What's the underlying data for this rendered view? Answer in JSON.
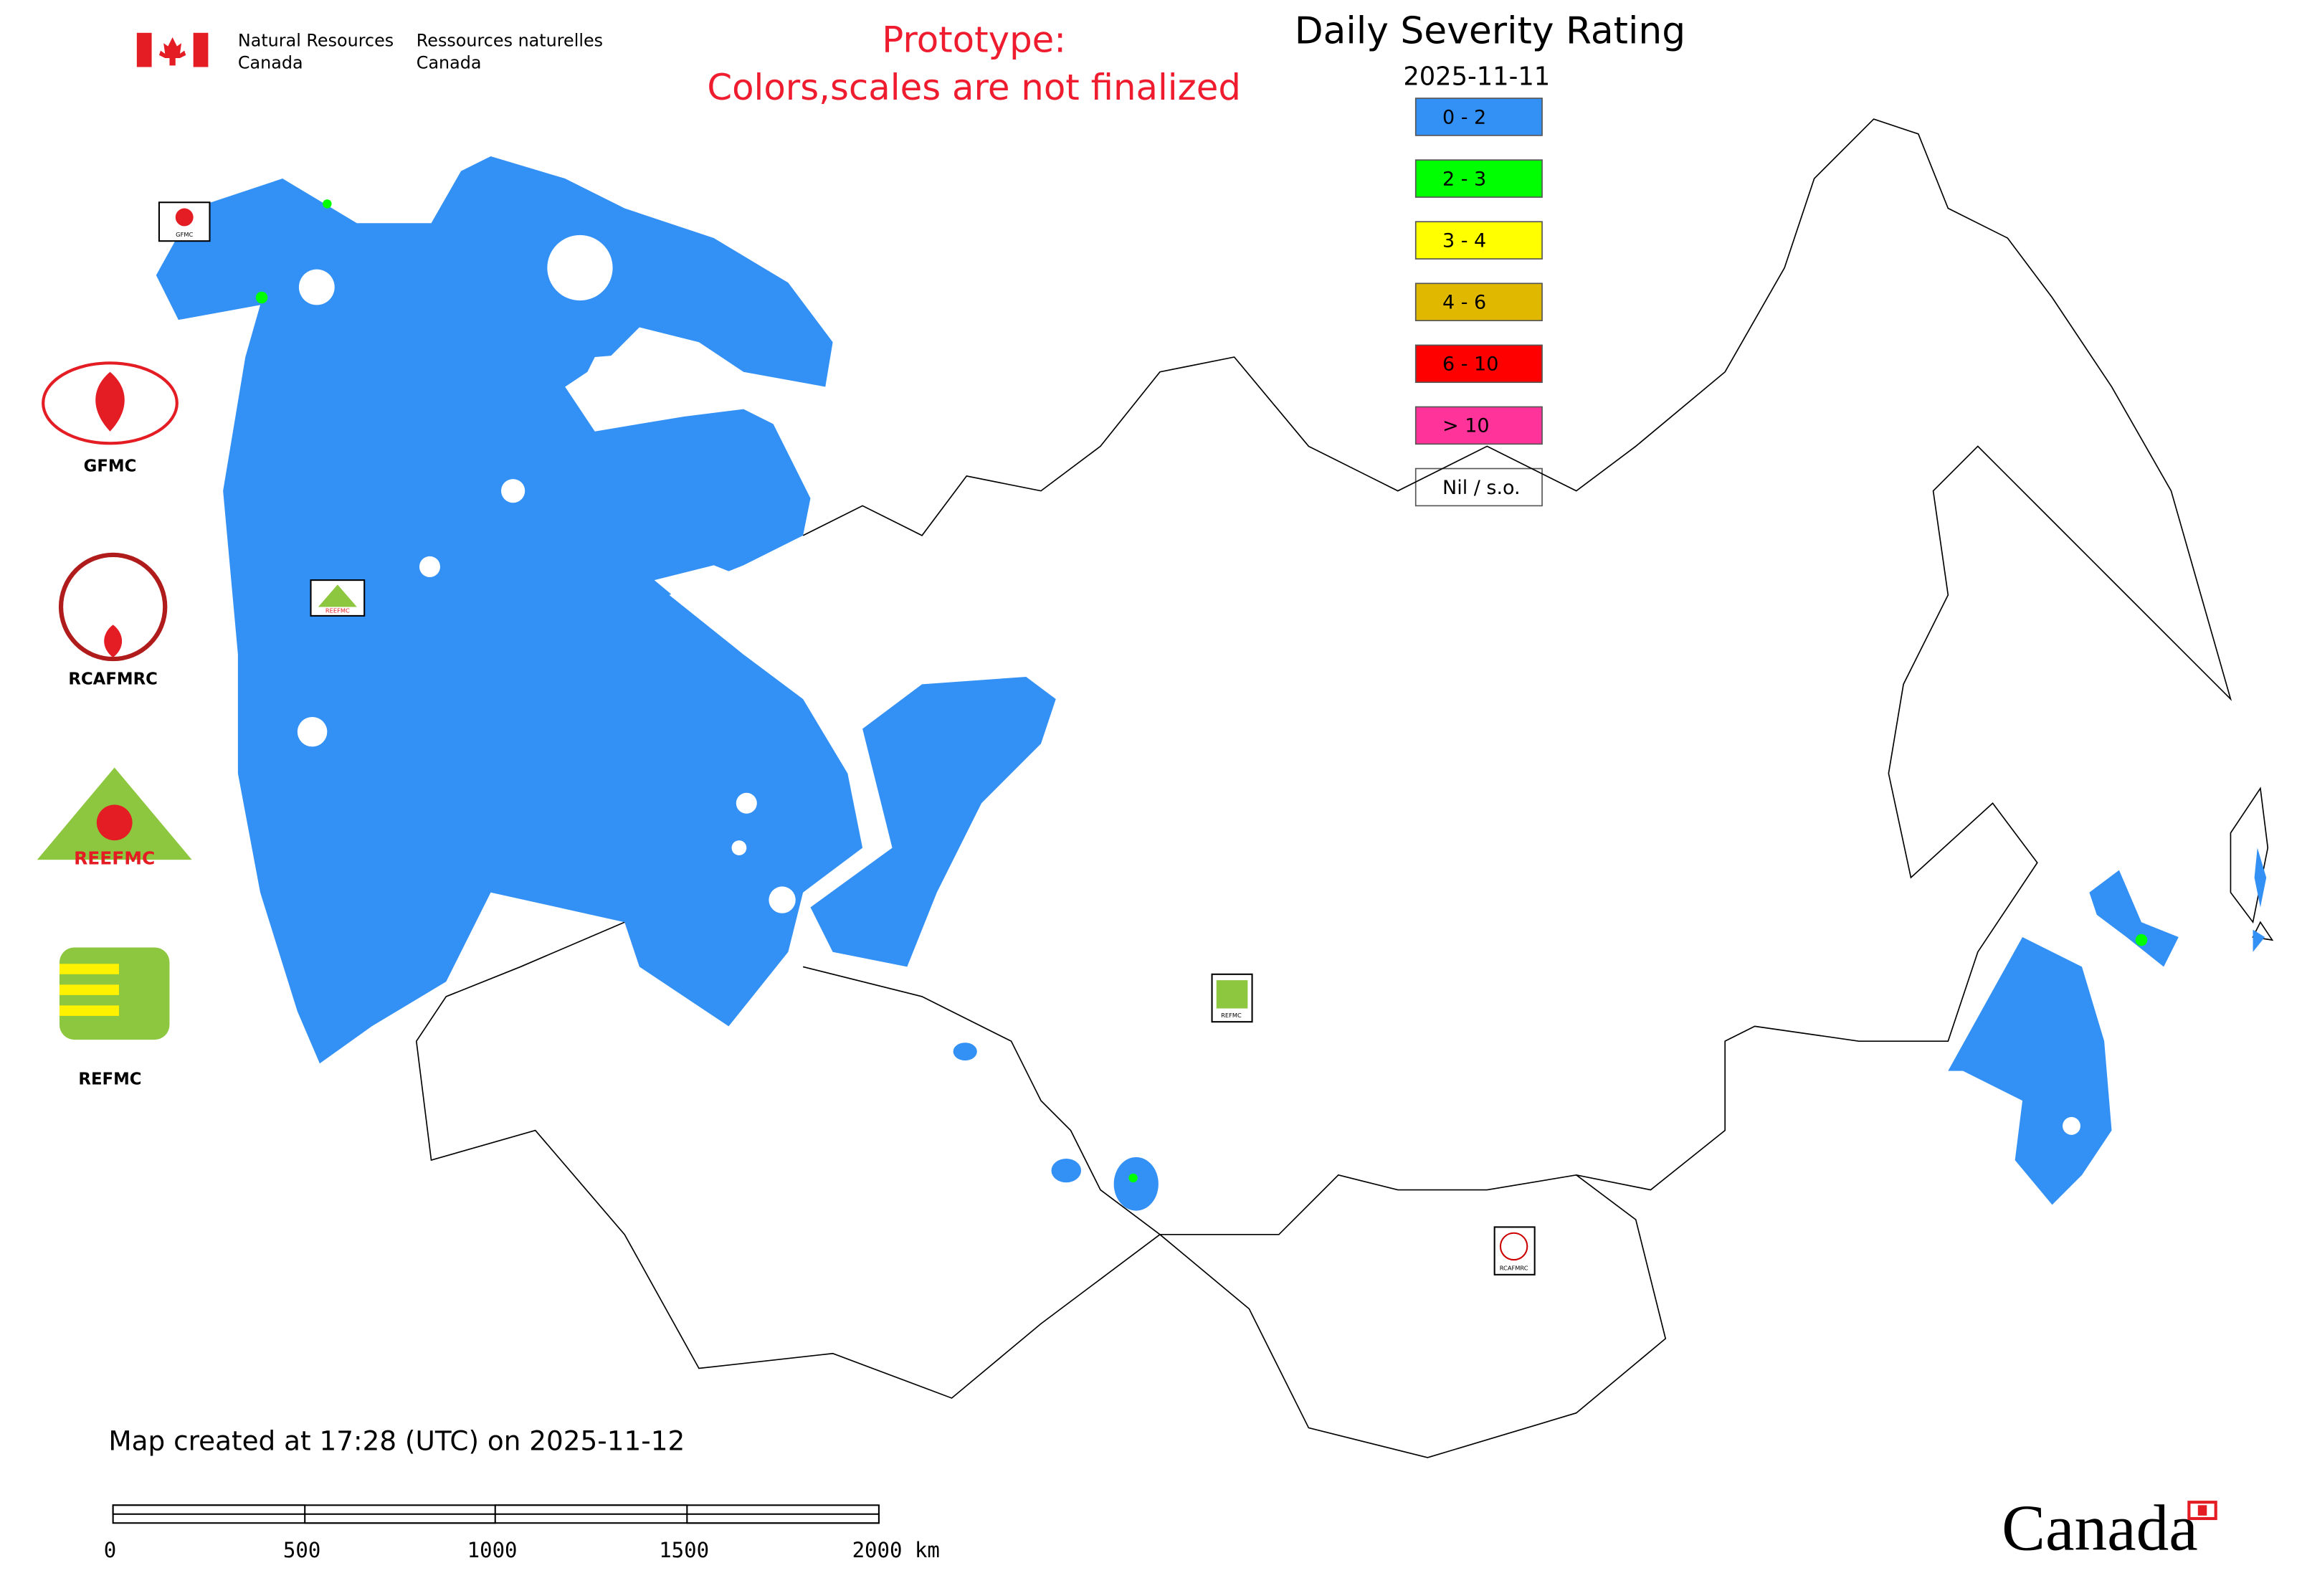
{
  "header": {
    "org_en_1": "Natural Resources",
    "org_en_2": "Canada",
    "org_fr_1": "Ressources naturelles",
    "org_fr_2": "Canada"
  },
  "prototype_notice": [
    "Prototype:",
    "Colors,scales are not finalized"
  ],
  "title": "Daily Severity Rating",
  "date": "2025-11-11",
  "legend": [
    {
      "label": "0 - 2",
      "color": "#3390f5"
    },
    {
      "label": "2 - 3",
      "color": "#00ff00"
    },
    {
      "label": "3 - 4",
      "color": "#ffff00"
    },
    {
      "label": "4 - 6",
      "color": "#e0b800"
    },
    {
      "label": "6 - 10",
      "color": "#ff0000"
    },
    {
      "label": "> 10",
      "color": "#ff3399"
    },
    {
      "label": "Nil / s.o.",
      "color": "#ffffff"
    }
  ],
  "side_logos": [
    "GFMC",
    "RCAFMRC",
    "REEFMC",
    "REFMC"
  ],
  "map_markers": [
    "GFMC",
    "REEFMC",
    "REFMC",
    "RCAFMRC"
  ],
  "footer": "Map created at 17:28 (UTC) on 2025-11-12",
  "scale_bar": [
    "0",
    "500",
    "1000",
    "1500",
    "2000 km"
  ],
  "wordmark": "Canada"
}
